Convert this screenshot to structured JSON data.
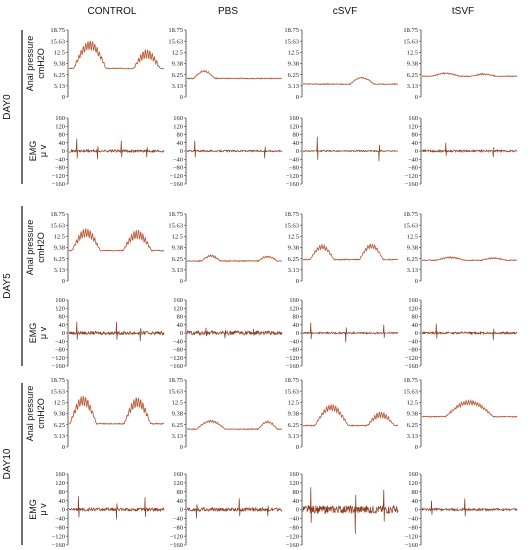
{
  "columns": [
    "CONTROL",
    "PBS",
    "cSVF",
    "tSVF"
  ],
  "days": [
    "DAY0",
    "DAY5",
    "DAY10"
  ],
  "row_labels": {
    "pressure": [
      "Anal pressure",
      "cmH2O"
    ],
    "emg": [
      "EMG",
      "μ v"
    ]
  },
  "axes": {
    "pressure": {
      "ticks": [
        "18.75",
        "15.63",
        "12.5",
        "9.38",
        "6.25",
        "3.13",
        "0"
      ],
      "ylim": [
        0,
        18.75
      ]
    },
    "emg": {
      "ticks": [
        "160",
        "120",
        "80",
        "40",
        "0",
        "−40",
        "−80",
        "−120",
        "−160"
      ],
      "ylim": [
        -160,
        160
      ]
    }
  },
  "colors": {
    "trace": "#b5542e",
    "emg_trace": "#8a3b1e",
    "axis": "#222222"
  },
  "chart_data": {
    "type": "line",
    "title": "",
    "description_free": true,
    "panels": [
      {
        "day": "DAY0",
        "group": "CONTROL",
        "kind": "pressure",
        "baseline": 8,
        "bumps": [
          {
            "c": 0.22,
            "w": 0.34,
            "h": 6.5
          },
          {
            "c": 0.82,
            "w": 0.28,
            "h": 4
          }
        ],
        "ripple": 1.3
      },
      {
        "day": "DAY0",
        "group": "PBS",
        "kind": "pressure",
        "baseline": 5.2,
        "bumps": [
          {
            "c": 0.18,
            "w": 0.22,
            "h": 2
          }
        ],
        "ripple": 0.2
      },
      {
        "day": "DAY0",
        "group": "cSVF",
        "kind": "pressure",
        "baseline": 3.6,
        "bumps": [
          {
            "c": 0.62,
            "w": 0.25,
            "h": 1.8
          }
        ],
        "ripple": 0.1
      },
      {
        "day": "DAY0",
        "group": "tSVF",
        "kind": "pressure",
        "baseline": 5.8,
        "bumps": [
          {
            "c": 0.25,
            "w": 0.3,
            "h": 0.8
          },
          {
            "c": 0.65,
            "w": 0.25,
            "h": 0.6
          }
        ],
        "ripple": 0.15
      },
      {
        "day": "DAY0",
        "group": "CONTROL",
        "kind": "emg",
        "spikes": [
          0.08,
          0.3,
          0.55,
          0.82
        ],
        "spike_h": [
          60,
          -40,
          50,
          -30
        ],
        "noise": 6
      },
      {
        "day": "DAY0",
        "group": "PBS",
        "kind": "emg",
        "spikes": [
          0.08,
          0.82
        ],
        "spike_h": [
          50,
          -35
        ],
        "noise": 4
      },
      {
        "day": "DAY0",
        "group": "cSVF",
        "kind": "emg",
        "spikes": [
          0.15,
          0.8
        ],
        "spike_h": [
          70,
          -50
        ],
        "noise": 3
      },
      {
        "day": "DAY0",
        "group": "tSVF",
        "kind": "emg",
        "spikes": [
          0.25,
          0.75
        ],
        "spike_h": [
          40,
          -30
        ],
        "noise": 5
      },
      {
        "day": "DAY5",
        "group": "CONTROL",
        "kind": "pressure",
        "baseline": 8.5,
        "bumps": [
          {
            "c": 0.18,
            "w": 0.3,
            "h": 5
          },
          {
            "c": 0.72,
            "w": 0.3,
            "h": 4.5
          }
        ],
        "ripple": 1.2
      },
      {
        "day": "DAY5",
        "group": "PBS",
        "kind": "pressure",
        "baseline": 5.6,
        "bumps": [
          {
            "c": 0.25,
            "w": 0.2,
            "h": 1.4
          },
          {
            "c": 0.85,
            "w": 0.2,
            "h": 1.2
          }
        ],
        "ripple": 0.25
      },
      {
        "day": "DAY5",
        "group": "cSVF",
        "kind": "pressure",
        "baseline": 6,
        "bumps": [
          {
            "c": 0.2,
            "w": 0.25,
            "h": 3.5
          },
          {
            "c": 0.72,
            "w": 0.25,
            "h": 3.8
          }
        ],
        "ripple": 0.6
      },
      {
        "day": "DAY5",
        "group": "tSVF",
        "kind": "pressure",
        "baseline": 5.8,
        "bumps": [
          {
            "c": 0.3,
            "w": 0.3,
            "h": 0.8
          },
          {
            "c": 0.75,
            "w": 0.25,
            "h": 0.6
          }
        ],
        "ripple": 0.15
      },
      {
        "day": "DAY5",
        "group": "CONTROL",
        "kind": "emg",
        "spikes": [
          0.08,
          0.5,
          0.75
        ],
        "spike_h": [
          55,
          55,
          -40
        ],
        "noise": 8
      },
      {
        "day": "DAY5",
        "group": "PBS",
        "kind": "emg",
        "spikes": [
          0.2,
          0.4,
          0.7
        ],
        "spike_h": [
          25,
          -25,
          20
        ],
        "noise": 10
      },
      {
        "day": "DAY5",
        "group": "cSVF",
        "kind": "emg",
        "spikes": [
          0.08,
          0.45,
          0.85
        ],
        "spike_h": [
          50,
          -45,
          40
        ],
        "noise": 4
      },
      {
        "day": "DAY5",
        "group": "tSVF",
        "kind": "emg",
        "spikes": [
          0.15,
          0.75
        ],
        "spike_h": [
          45,
          -35
        ],
        "noise": 5
      },
      {
        "day": "DAY10",
        "group": "CONTROL",
        "kind": "pressure",
        "baseline": 6.5,
        "bumps": [
          {
            "c": 0.15,
            "w": 0.28,
            "h": 6.5
          },
          {
            "c": 0.72,
            "w": 0.28,
            "h": 6
          }
        ],
        "ripple": 1.4
      },
      {
        "day": "DAY10",
        "group": "PBS",
        "kind": "pressure",
        "baseline": 5,
        "bumps": [
          {
            "c": 0.25,
            "w": 0.3,
            "h": 2.2
          },
          {
            "c": 0.85,
            "w": 0.2,
            "h": 2
          }
        ],
        "ripple": 0.25
      },
      {
        "day": "DAY10",
        "group": "cSVF",
        "kind": "pressure",
        "baseline": 6,
        "bumps": [
          {
            "c": 0.3,
            "w": 0.35,
            "h": 5
          },
          {
            "c": 0.82,
            "w": 0.28,
            "h": 3
          }
        ],
        "ripple": 0.8
      },
      {
        "day": "DAY10",
        "group": "tSVF",
        "kind": "pressure",
        "baseline": 8.5,
        "bumps": [
          {
            "c": 0.5,
            "w": 0.5,
            "h": 4
          }
        ],
        "ripple": 0.6
      },
      {
        "day": "DAY10",
        "group": "CONTROL",
        "kind": "emg",
        "spikes": [
          0.1,
          0.5,
          0.8
        ],
        "spike_h": [
          60,
          -45,
          55
        ],
        "noise": 7
      },
      {
        "day": "DAY10",
        "group": "PBS",
        "kind": "emg",
        "spikes": [
          0.1,
          0.55,
          0.85
        ],
        "spike_h": [
          -40,
          50,
          -30
        ],
        "noise": 8
      },
      {
        "day": "DAY10",
        "group": "cSVF",
        "kind": "emg",
        "spikes": [
          0.08,
          0.55,
          0.85
        ],
        "spike_h": [
          100,
          -110,
          90
        ],
        "noise": 18
      },
      {
        "day": "DAY10",
        "group": "tSVF",
        "kind": "emg",
        "spikes": [
          0.1,
          0.45
        ],
        "spike_h": [
          40,
          50
        ],
        "noise": 5
      }
    ]
  }
}
